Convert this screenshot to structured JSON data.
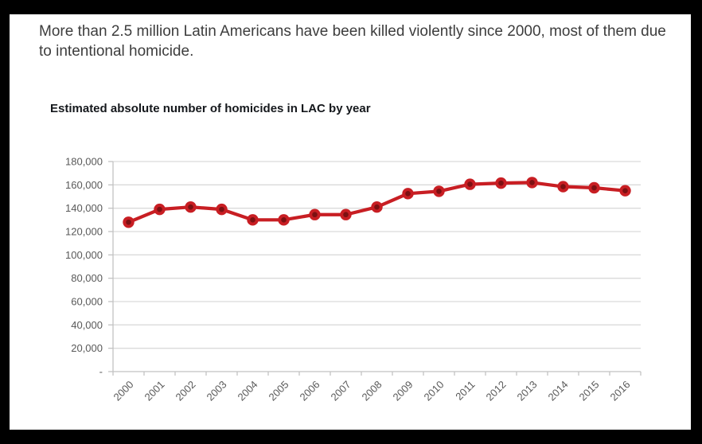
{
  "page": {
    "background_color": "#000000",
    "card_background_color": "#ffffff"
  },
  "header": {
    "text": "More than 2.5 million Latin Americans have been killed violently since 2000, most of them due to intentional homicide."
  },
  "chart_data": {
    "type": "line",
    "title": "Estimated absolute number of homicides in LAC by year",
    "categories": [
      "2000",
      "2001",
      "2002",
      "2003",
      "2004",
      "2005",
      "2006",
      "2007",
      "2008",
      "2009",
      "2010",
      "2011",
      "2012",
      "2013",
      "2014",
      "2015",
      "2016"
    ],
    "series": [
      {
        "name": "Estimated absolute number of homicides in LAC",
        "values": [
          128000,
          139000,
          141000,
          139000,
          130000,
          130000,
          134500,
          134500,
          141000,
          152500,
          154500,
          160500,
          161500,
          162000,
          158500,
          157500,
          155000
        ],
        "line_color": "#c81e23",
        "marker_ring_color": "#c81e23",
        "marker_center_color": "#7c1012"
      }
    ],
    "ylim": [
      0,
      180000
    ],
    "ytick_interval": 20000,
    "ytick_labels_top_to_bottom": [
      "180,000",
      "160,000",
      "140,000",
      "120,000",
      "100,000",
      "80,000",
      "60,000",
      "40,000",
      "20,000",
      "-"
    ],
    "xlabel": "",
    "ylabel": "",
    "grid": true,
    "legend": "none",
    "x_label_rotation_degrees": -45,
    "grid_color": "#dadada",
    "axis_color": "#c2c2c2",
    "tick_label_color": "#595959",
    "title_color": "#15181c"
  }
}
